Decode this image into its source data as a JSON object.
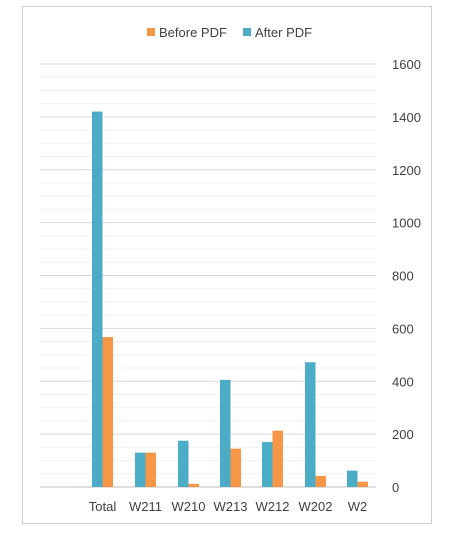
{
  "chart_data": {
    "type": "bar",
    "categories": [
      "Total",
      "W211",
      "W210",
      "W213",
      "W212",
      "W202",
      "W2"
    ],
    "series": [
      {
        "name": "After PDF",
        "color": "#4bacc6",
        "values": [
          1420,
          130,
          175,
          405,
          170,
          472,
          62
        ]
      },
      {
        "name": "Before PDF",
        "color": "#f79646",
        "values": [
          567,
          130,
          12,
          145,
          213,
          42,
          20
        ]
      }
    ],
    "legend_order": [
      "Before PDF",
      "After PDF"
    ],
    "legend_position": "top",
    "y_axis_side": "right",
    "ylim": [
      0,
      1600
    ],
    "yticks": [
      0,
      200,
      400,
      600,
      800,
      1000,
      1200,
      1400,
      1600
    ],
    "minor_step": 50,
    "grid": true,
    "title": "",
    "xlabel": "",
    "ylabel": ""
  }
}
